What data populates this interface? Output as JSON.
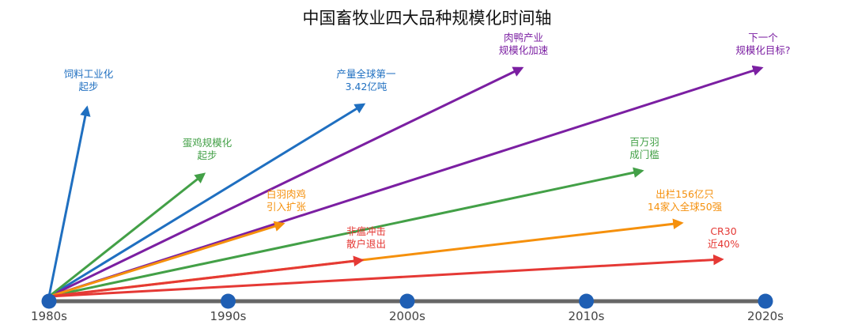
{
  "title": "中国畜牧业四大品种规模化时间轴",
  "timeline": {
    "ticks": [
      "1980s",
      "1990s",
      "2000s",
      "2010s",
      "2020s"
    ],
    "axis_color": "#666666",
    "dot_color": "#1f5fb4"
  },
  "colors": {
    "blue": "#1f6fc0",
    "green": "#43a047",
    "purple": "#7b1fa2",
    "orange": "#f5900c",
    "red": "#e53935"
  },
  "arrows": [
    {
      "id": "feed-industrialization",
      "color": "blue",
      "lines": [
        "饲料工业化",
        "起步"
      ]
    },
    {
      "id": "pork-output-first",
      "color": "blue",
      "lines": [
        "产量全球第一",
        "3.42亿吨"
      ]
    },
    {
      "id": "duck-scale-accel",
      "color": "purple",
      "lines": [
        "肉鸭产业",
        "规模化加速"
      ]
    },
    {
      "id": "next-scale-target",
      "color": "purple",
      "lines": [
        "下一个",
        "规模化目标?"
      ]
    },
    {
      "id": "egg-scale-start",
      "color": "green",
      "lines": [
        "蛋鸡规模化",
        "起步"
      ]
    },
    {
      "id": "million-threshold",
      "color": "green",
      "lines": [
        "百万羽",
        "成门槛"
      ]
    },
    {
      "id": "broiler-expansion",
      "color": "orange",
      "lines": [
        "白羽肉鸡",
        "引入扩张"
      ]
    },
    {
      "id": "broiler-output-156",
      "color": "orange",
      "lines": [
        "出栏156亿只",
        "14家入全球50强"
      ]
    },
    {
      "id": "flu-shock",
      "color": "red",
      "lines": [
        "非瘟冲击",
        "散户退出"
      ]
    },
    {
      "id": "cr30-share",
      "color": "red",
      "lines": [
        "CR30",
        "近40%"
      ]
    }
  ]
}
